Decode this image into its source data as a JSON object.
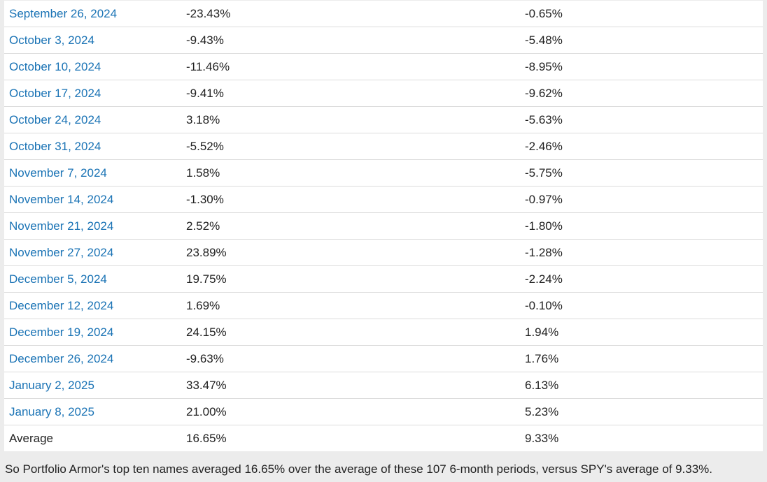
{
  "table": {
    "rows": [
      {
        "date": "September 26, 2024",
        "pa": "-23.43%",
        "spy": "-0.65%"
      },
      {
        "date": "October 3, 2024",
        "pa": "-9.43%",
        "spy": "-5.48%"
      },
      {
        "date": "October 10, 2024",
        "pa": "-11.46%",
        "spy": "-8.95%"
      },
      {
        "date": "October 17, 2024",
        "pa": "-9.41%",
        "spy": "-9.62%"
      },
      {
        "date": "October 24, 2024",
        "pa": "3.18%",
        "spy": "-5.63%"
      },
      {
        "date": "October 31, 2024",
        "pa": "-5.52%",
        "spy": "-2.46%"
      },
      {
        "date": "November 7, 2024",
        "pa": "1.58%",
        "spy": "-5.75%"
      },
      {
        "date": "November 14, 2024",
        "pa": "-1.30%",
        "spy": "-0.97%"
      },
      {
        "date": "November 21, 2024",
        "pa": "2.52%",
        "spy": "-1.80%"
      },
      {
        "date": "November 27, 2024",
        "pa": "23.89%",
        "spy": "-1.28%"
      },
      {
        "date": "December 5, 2024",
        "pa": "19.75%",
        "spy": "-2.24%"
      },
      {
        "date": "December 12, 2024",
        "pa": "1.69%",
        "spy": "-0.10%"
      },
      {
        "date": "December 19, 2024",
        "pa": "24.15%",
        "spy": "1.94%"
      },
      {
        "date": "December 26, 2024",
        "pa": "-9.63%",
        "spy": "1.76%"
      },
      {
        "date": "January 2, 2025",
        "pa": "33.47%",
        "spy": "6.13%"
      },
      {
        "date": "January 8, 2025",
        "pa": "21.00%",
        "spy": "5.23%"
      }
    ],
    "average": {
      "label": "Average",
      "pa": "16.65%",
      "spy": "9.33%"
    }
  },
  "summary": "So Portfolio Armor's top ten names averaged 16.65% over the average of these 107 6-month periods, versus SPY's average of 9.33%.",
  "colors": {
    "link": "#1a73b5",
    "text": "#222222",
    "background": "#ececec"
  }
}
